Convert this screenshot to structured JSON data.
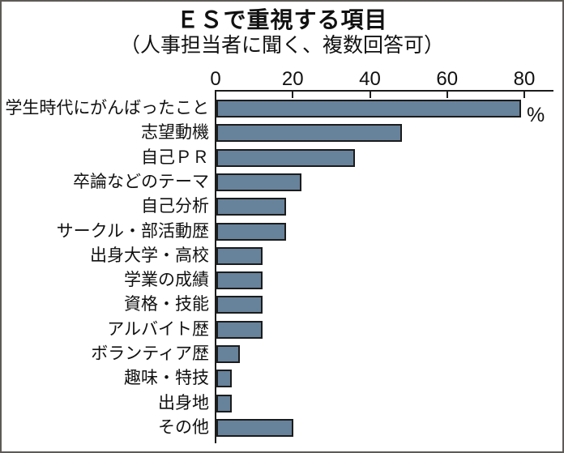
{
  "chart_data": {
    "type": "bar",
    "orientation": "horizontal",
    "title": "ＥＳで重視する項目",
    "subtitle": "（人事担当者に聞く、複数回答可）",
    "unit_label": "%",
    "categories": [
      "学生時代にがんばったこと",
      "志望動機",
      "自己ＰＲ",
      "卒論などのテーマ",
      "自己分析",
      "サークル・部活動歴",
      "出身大学・高校",
      "学業の成績",
      "資格・技能",
      "アルバイト歴",
      "ボランティア歴",
      "趣味・特技",
      "出身地",
      "その他"
    ],
    "values": [
      79,
      48,
      36,
      22,
      18,
      18,
      12,
      12,
      12,
      12,
      6,
      4,
      4,
      20
    ],
    "x_ticks": [
      0,
      20,
      40,
      60,
      80
    ],
    "xlim": [
      0,
      87.5
    ],
    "grid": false,
    "legend": "none",
    "bar_color": "#67829b",
    "bar_border_color": "#1c1c1c",
    "axis_color": "#1c1c1c"
  }
}
